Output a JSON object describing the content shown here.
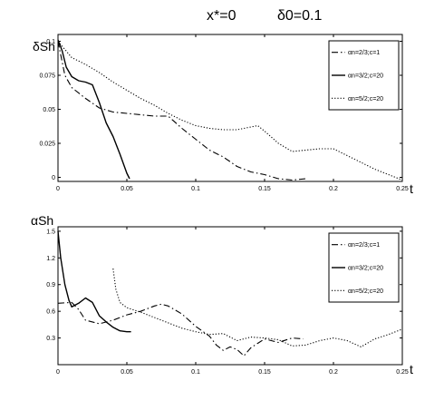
{
  "figure": {
    "title_left": "x*=0",
    "title_right": "δ0=0.1"
  },
  "chart_data": [
    {
      "type": "line",
      "ylabel": "δSh",
      "xlabel": "t",
      "xlim": [
        0,
        0.25
      ],
      "ylim": [
        -0.003,
        0.105
      ],
      "xticks": [
        0,
        0.05,
        0.1,
        0.15,
        0.2,
        0.25
      ],
      "xtick_labels": [
        "0",
        "0.05",
        "0.1",
        "0.15",
        "0.2",
        "0.25"
      ],
      "yticks": [
        0,
        0.025,
        0.05,
        0.075,
        0.1
      ],
      "ytick_labels": [
        "0",
        "0.025",
        "0.05",
        "0.075",
        "0.1"
      ],
      "grid": false,
      "legend_position": "top-right",
      "series": [
        {
          "name": "αn=2/3;c=1",
          "style": "dashdot",
          "x": [
            0,
            0.005,
            0.01,
            0.02,
            0.03,
            0.04,
            0.05,
            0.06,
            0.07,
            0.08,
            0.09,
            0.1,
            0.11,
            0.12,
            0.13,
            0.14,
            0.15,
            0.16,
            0.17,
            0.18
          ],
          "y": [
            0.1,
            0.075,
            0.066,
            0.058,
            0.051,
            0.048,
            0.047,
            0.046,
            0.045,
            0.045,
            0.036,
            0.028,
            0.02,
            0.015,
            0.008,
            0.004,
            0.002,
            -0.001,
            -0.002,
            -0.001
          ]
        },
        {
          "name": "αn=3/2;c=20",
          "style": "solid",
          "x": [
            0,
            0.003,
            0.006,
            0.01,
            0.015,
            0.02,
            0.025,
            0.03,
            0.035,
            0.04,
            0.045,
            0.05,
            0.052
          ],
          "y": [
            0.101,
            0.093,
            0.081,
            0.074,
            0.071,
            0.07,
            0.068,
            0.055,
            0.04,
            0.03,
            0.017,
            0.003,
            -0.001
          ]
        },
        {
          "name": "αn=5/2;c=20",
          "style": "dotted",
          "x": [
            0,
            0.01,
            0.02,
            0.03,
            0.04,
            0.05,
            0.06,
            0.07,
            0.08,
            0.09,
            0.1,
            0.11,
            0.12,
            0.13,
            0.14,
            0.145,
            0.15,
            0.16,
            0.17,
            0.18,
            0.19,
            0.2,
            0.21,
            0.22,
            0.23,
            0.24,
            0.25
          ],
          "y": [
            0.1,
            0.088,
            0.083,
            0.077,
            0.07,
            0.064,
            0.058,
            0.053,
            0.047,
            0.042,
            0.038,
            0.036,
            0.035,
            0.035,
            0.037,
            0.038,
            0.034,
            0.025,
            0.019,
            0.02,
            0.021,
            0.021,
            0.016,
            0.011,
            0.006,
            0.002,
            -0.002
          ]
        }
      ]
    },
    {
      "type": "line",
      "ylabel": "αSh",
      "xlabel": "t",
      "xlim": [
        0,
        0.25
      ],
      "ylim": [
        0,
        1.55
      ],
      "xticks": [
        0,
        0.05,
        0.1,
        0.15,
        0.2,
        0.25
      ],
      "xtick_labels": [
        "0",
        "0.05",
        "0.1",
        "0.15",
        "0.2",
        "0.25"
      ],
      "yticks": [
        0.3,
        0.6,
        0.9,
        1.2,
        1.5
      ],
      "ytick_labels": [
        "0.3",
        "0.6",
        "0.9",
        "1.2",
        "1.5"
      ],
      "grid": false,
      "legend_position": "top-right",
      "series": [
        {
          "name": "αn=2/3;c=1",
          "style": "dashdot",
          "x": [
            0,
            0.01,
            0.015,
            0.02,
            0.03,
            0.04,
            0.05,
            0.06,
            0.07,
            0.075,
            0.08,
            0.09,
            0.1,
            0.11,
            0.115,
            0.12,
            0.125,
            0.13,
            0.135,
            0.14,
            0.145,
            0.15,
            0.16,
            0.17,
            0.178
          ],
          "y": [
            0.69,
            0.7,
            0.62,
            0.5,
            0.46,
            0.5,
            0.56,
            0.6,
            0.66,
            0.68,
            0.66,
            0.57,
            0.43,
            0.32,
            0.22,
            0.16,
            0.2,
            0.17,
            0.1,
            0.19,
            0.24,
            0.29,
            0.25,
            0.3,
            0.29
          ]
        },
        {
          "name": "αn=3/2;c=20",
          "style": "solid",
          "x": [
            0,
            0.002,
            0.005,
            0.008,
            0.01,
            0.015,
            0.02,
            0.025,
            0.03,
            0.035,
            0.04,
            0.045,
            0.05,
            0.053
          ],
          "y": [
            1.5,
            1.2,
            0.9,
            0.72,
            0.65,
            0.69,
            0.75,
            0.7,
            0.55,
            0.48,
            0.42,
            0.38,
            0.37,
            0.37
          ]
        },
        {
          "name": "αn=5/2;c=20",
          "style": "dotted",
          "x": [
            0.04,
            0.042,
            0.045,
            0.05,
            0.06,
            0.07,
            0.08,
            0.09,
            0.1,
            0.11,
            0.12,
            0.13,
            0.14,
            0.15,
            0.16,
            0.17,
            0.18,
            0.19,
            0.2,
            0.21,
            0.22,
            0.23,
            0.24,
            0.25
          ],
          "y": [
            1.08,
            0.85,
            0.7,
            0.64,
            0.59,
            0.53,
            0.47,
            0.41,
            0.37,
            0.34,
            0.35,
            0.27,
            0.31,
            0.3,
            0.28,
            0.21,
            0.22,
            0.27,
            0.3,
            0.27,
            0.2,
            0.29,
            0.34,
            0.4
          ]
        }
      ]
    }
  ]
}
